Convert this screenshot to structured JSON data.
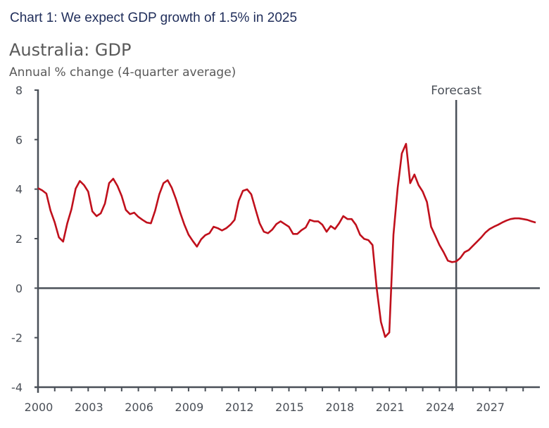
{
  "chart_data": {
    "type": "line",
    "header": "Chart 1: We expect GDP growth of 1.5% in 2025",
    "title": "Australia: GDP",
    "ylabel": "Annual % change (4-quarter average)",
    "xlabel": "",
    "ylim": [
      -4,
      8
    ],
    "xlim": [
      2000,
      2030
    ],
    "yticks": [
      "8",
      "6",
      "4",
      "2",
      "0",
      "-2",
      "-4"
    ],
    "ytick_values": [
      8,
      6,
      4,
      2,
      0,
      -2,
      -4
    ],
    "xtick_labels": [
      "2000",
      "2003",
      "2006",
      "2009",
      "2012",
      "2015",
      "2018",
      "2021",
      "2024",
      "2027"
    ],
    "xtick_values": [
      2000,
      2003,
      2006,
      2009,
      2012,
      2015,
      2018,
      2021,
      2024,
      2027
    ],
    "grid": false,
    "annotation": {
      "label": "Forecast",
      "x": 2025
    },
    "colors": {
      "line": "#C0101C",
      "axis": "#4A5058",
      "header": "#1F2D5A",
      "text": "#595959"
    },
    "series": [
      {
        "x": [
          2000,
          2000.25,
          2000.5,
          2000.75,
          2001,
          2001.25,
          2001.5,
          2001.75,
          2002,
          2002.25,
          2002.5,
          2002.75,
          2003,
          2003.25,
          2003.5,
          2003.75,
          2004,
          2004.25,
          2004.5,
          2004.75,
          2005,
          2005.25,
          2005.5,
          2005.75,
          2006,
          2006.25,
          2006.5,
          2006.75,
          2007,
          2007.25,
          2007.5,
          2007.75,
          2008,
          2008.25,
          2008.5,
          2008.75,
          2009,
          2009.25,
          2009.5,
          2009.75,
          2010,
          2010.25,
          2010.5,
          2010.75,
          2011,
          2011.25,
          2011.5,
          2011.75,
          2012,
          2012.25,
          2012.5,
          2012.75,
          2013,
          2013.25,
          2013.5,
          2013.75,
          2014,
          2014.25,
          2014.5,
          2014.75,
          2015,
          2015.25,
          2015.5,
          2015.75,
          2016,
          2016.25,
          2016.5,
          2016.75,
          2017,
          2017.25,
          2017.5,
          2017.75,
          2018,
          2018.25,
          2018.5,
          2018.75,
          2019,
          2019.25,
          2019.5,
          2019.75,
          2020,
          2020.25,
          2020.5,
          2020.75,
          2021,
          2021.25,
          2021.5,
          2021.75,
          2022,
          2022.25,
          2022.5,
          2022.75,
          2023,
          2023.25,
          2023.5,
          2023.75,
          2024,
          2024.25,
          2024.5,
          2024.75,
          2025,
          2025.25,
          2025.5,
          2025.75,
          2026,
          2026.25,
          2026.5,
          2026.75,
          2027,
          2027.25,
          2027.5,
          2027.75,
          2028,
          2028.25,
          2028.5,
          2028.75,
          2029,
          2029.25,
          2029.5,
          2029.75
        ],
        "values": [
          4.04,
          3.95,
          3.82,
          3.13,
          2.65,
          2.05,
          1.88,
          2.62,
          3.19,
          4.02,
          4.33,
          4.16,
          3.9,
          3.1,
          2.91,
          3.02,
          3.42,
          4.24,
          4.42,
          4.13,
          3.73,
          3.16,
          2.99,
          3.05,
          2.88,
          2.76,
          2.65,
          2.62,
          3.13,
          3.79,
          4.24,
          4.36,
          4.05,
          3.59,
          3.05,
          2.56,
          2.16,
          1.91,
          1.68,
          1.97,
          2.14,
          2.22,
          2.48,
          2.42,
          2.33,
          2.42,
          2.56,
          2.76,
          3.53,
          3.93,
          3.99,
          3.79,
          3.19,
          2.62,
          2.28,
          2.22,
          2.36,
          2.59,
          2.7,
          2.59,
          2.48,
          2.19,
          2.19,
          2.34,
          2.45,
          2.76,
          2.7,
          2.7,
          2.56,
          2.28,
          2.51,
          2.39,
          2.62,
          2.91,
          2.79,
          2.79,
          2.56,
          2.16,
          1.99,
          1.94,
          1.74,
          -0.03,
          -1.36,
          -1.97,
          -1.79,
          2.16,
          4.05,
          5.44,
          5.83,
          4.24,
          4.59,
          4.16,
          3.9,
          3.48,
          2.48,
          2.11,
          1.74,
          1.45,
          1.11,
          1.05,
          1.08,
          1.22,
          1.45,
          1.54,
          1.71,
          1.88,
          2.05,
          2.25,
          2.39,
          2.48,
          2.56,
          2.65,
          2.73,
          2.79,
          2.82,
          2.82,
          2.79,
          2.76,
          2.7,
          2.65
        ]
      }
    ]
  }
}
